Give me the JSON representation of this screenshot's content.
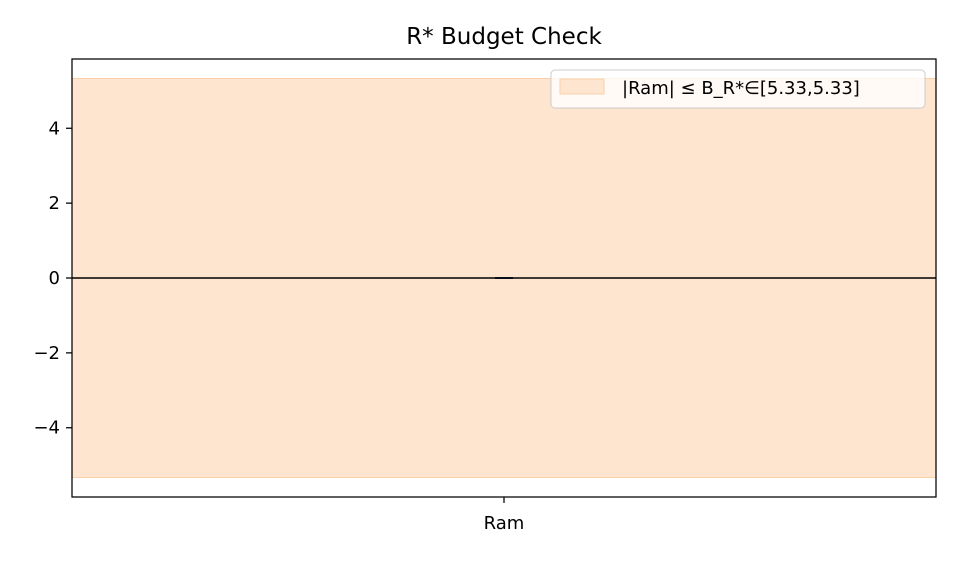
{
  "chart_data": {
    "type": "bar",
    "title": "R* Budget Check",
    "xlabel": "",
    "ylabel": "",
    "categories": [
      "Ram"
    ],
    "series": [
      {
        "values": [
          0.0
        ]
      }
    ],
    "ylim": [
      -5.85,
      5.85
    ],
    "yticks": [
      4,
      2,
      0,
      -2,
      -4
    ],
    "ytick_labels": [
      "4",
      "2",
      "0",
      "−2",
      "−4"
    ],
    "band": {
      "lower": -5.33,
      "upper": 5.33,
      "color": "#fde5d0",
      "edge_color": "#fbd0aa",
      "label": "|Ram| ≤ B_R*∈[5.33,5.33]"
    },
    "zero_line": 0,
    "bar_color": "#1f3a5f",
    "grid": false,
    "legend_position": "top-right"
  }
}
